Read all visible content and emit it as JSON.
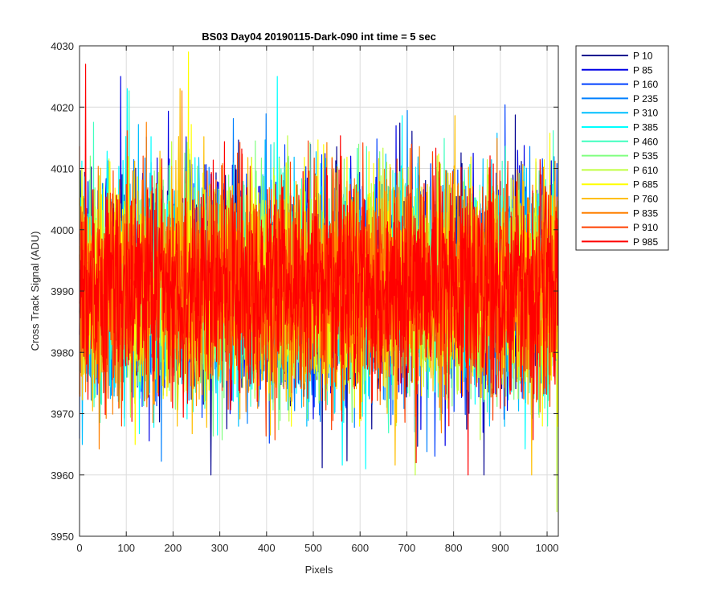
{
  "chart_data": {
    "type": "line",
    "title": "BS03 Day04 20190115-Dark-090 int time = 5 sec",
    "xlabel": "Pixels",
    "ylabel": "Cross Track Signal (ADU)",
    "xlim": [
      0,
      1024
    ],
    "ylim": [
      3950,
      4030
    ],
    "x_ticks": [
      0,
      100,
      200,
      300,
      400,
      500,
      600,
      700,
      800,
      900,
      1000
    ],
    "y_ticks": [
      3950,
      3960,
      3970,
      3980,
      3990,
      4000,
      4010,
      4020,
      4030
    ],
    "grid": true,
    "legend_position": "outside-top-right",
    "n_points_per_series": 1024,
    "noise_model": {
      "mean": 3990.5,
      "std": 8.5,
      "min": 3960,
      "max": 4025
    },
    "series": [
      {
        "name": "P 10",
        "color": "#00008f"
      },
      {
        "name": "P 85",
        "color": "#0000e6"
      },
      {
        "name": "P 160",
        "color": "#0040ff"
      },
      {
        "name": "P 235",
        "color": "#0080ff"
      },
      {
        "name": "P 310",
        "color": "#00bfff"
      },
      {
        "name": "P 385",
        "color": "#00ffff"
      },
      {
        "name": "P 460",
        "color": "#40ffbf"
      },
      {
        "name": "P 535",
        "color": "#80ff80"
      },
      {
        "name": "P 610",
        "color": "#bfff40"
      },
      {
        "name": "P 685",
        "color": "#ffff00"
      },
      {
        "name": "P 760",
        "color": "#ffbf00"
      },
      {
        "name": "P 835",
        "color": "#ff8000"
      },
      {
        "name": "P 910",
        "color": "#ff4000"
      },
      {
        "name": "P 985",
        "color": "#ff0000"
      }
    ],
    "notable_points": [
      {
        "series": "P 985",
        "x": 13,
        "y": 4027
      },
      {
        "series": "P 685",
        "x": 233,
        "y": 4029
      },
      {
        "series": "P 85",
        "x": 88,
        "y": 4025
      },
      {
        "series": "P 385",
        "x": 423,
        "y": 4025
      },
      {
        "series": "P 610",
        "x": 1021,
        "y": 3954
      },
      {
        "series": "P 760",
        "x": 967,
        "y": 3960
      },
      {
        "series": "P 985",
        "x": 720,
        "y": 3962
      },
      {
        "series": "P 385",
        "x": 612,
        "y": 3961
      }
    ]
  }
}
